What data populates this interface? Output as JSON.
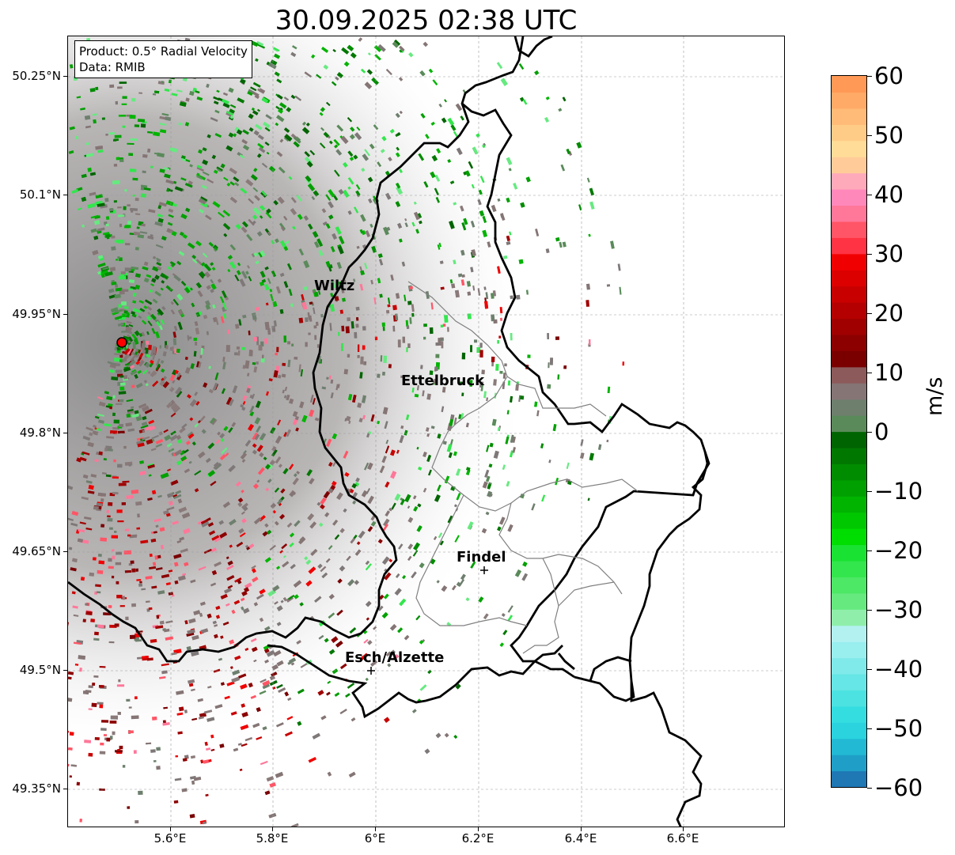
{
  "title": "30.09.2025 02:38 UTC",
  "info_box": {
    "product": "Product: 0.5° Radial Velocity",
    "data": "Data: RMIB"
  },
  "map": {
    "lat_ticks": [
      "50.25°N",
      "50.1°N",
      "49.95°N",
      "49.8°N",
      "49.65°N",
      "49.5°N",
      "49.35°N"
    ],
    "lon_ticks": [
      "5.6°E",
      "5.8°E",
      "6°E",
      "6.2°E",
      "6.4°E",
      "6.6°E"
    ],
    "cities": [
      {
        "name": "Wiltz"
      },
      {
        "name": "Ettelbruck"
      },
      {
        "name": "Findel"
      },
      {
        "name": "Esch/Alzette"
      }
    ],
    "radar_marker_color": "#ff0000",
    "border_color": "#000000",
    "admin_border_color": "#808080"
  },
  "colorbar": {
    "unit": "m/s",
    "min": -60,
    "max": 60,
    "tick_labels": [
      "60",
      "50",
      "40",
      "30",
      "20",
      "10",
      "0",
      "−10",
      "−20",
      "−30",
      "−40",
      "−50",
      "−60"
    ],
    "colors_bottom_to_top": [
      "#1f77b4",
      "#1f9fc8",
      "#22b9d4",
      "#2ad3de",
      "#33dde0",
      "#4ce2e2",
      "#66e6e6",
      "#80eaea",
      "#99eeee",
      "#b3f1f1",
      "#8fefaa",
      "#66ea80",
      "#4de866",
      "#33e64d",
      "#1ae233",
      "#00dd00",
      "#00c800",
      "#00b400",
      "#00a000",
      "#008c00",
      "#007800",
      "#006400",
      "#5a8a5a",
      "#6e7f6e",
      "#857575",
      "#8c5a5a",
      "#7a0000",
      "#8c0000",
      "#a00000",
      "#b40000",
      "#c80000",
      "#dc0000",
      "#f00000",
      "#ff3344",
      "#ff5566",
      "#ff7799",
      "#ff88bb",
      "#ffaabb",
      "#ffcc99",
      "#ffdd99",
      "#ffcc88",
      "#ffbb77",
      "#ffaa66",
      "#ff9955"
    ]
  }
}
